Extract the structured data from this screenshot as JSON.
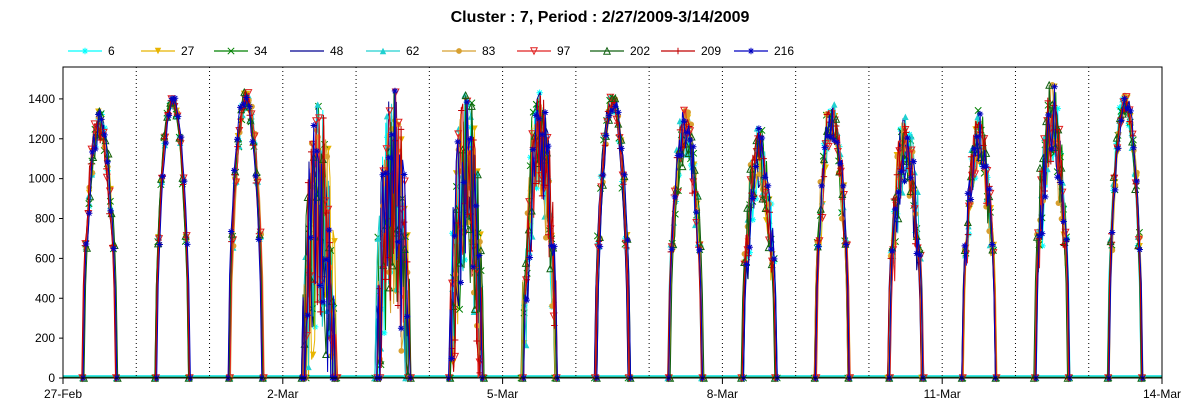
{
  "chart_data": {
    "type": "line",
    "title": "Cluster : 7, Period : 2/27/2009-3/14/2009",
    "xlabel": "",
    "ylabel": "",
    "ylim": [
      0,
      1560
    ],
    "yticks": [
      0,
      200,
      400,
      600,
      800,
      1000,
      1200,
      1400
    ],
    "xlim_days": [
      0,
      15
    ],
    "xticks": [
      {
        "day": 0,
        "label": "27-Feb"
      },
      {
        "day": 3,
        "label": "2-Mar"
      },
      {
        "day": 6,
        "label": "5-Mar"
      },
      {
        "day": 9,
        "label": "8-Mar"
      },
      {
        "day": 12,
        "label": "11-Mar"
      },
      {
        "day": 15,
        "label": "14-Mar"
      }
    ],
    "grid": {
      "vertical_dotted_daily": true,
      "horizontal": false
    },
    "legend_position": "top",
    "daily_peaks": [
      {
        "day": 0,
        "peak": 1360,
        "spread": 160,
        "profile": "cloudy"
      },
      {
        "day": 1,
        "peak": 1390,
        "spread": 60,
        "profile": "clear"
      },
      {
        "day": 2,
        "peak": 1400,
        "spread": 110,
        "profile": "clear"
      },
      {
        "day": 3,
        "peak": 1380,
        "spread": 700,
        "profile": "variable"
      },
      {
        "day": 4,
        "peak": 1460,
        "spread": 700,
        "profile": "variable"
      },
      {
        "day": 5,
        "peak": 1460,
        "spread": 600,
        "profile": "variable"
      },
      {
        "day": 6,
        "peak": 1440,
        "spread": 350,
        "profile": "variable"
      },
      {
        "day": 7,
        "peak": 1380,
        "spread": 90,
        "profile": "clear"
      },
      {
        "day": 8,
        "peak": 1370,
        "spread": 250,
        "profile": "cloudy"
      },
      {
        "day": 9,
        "peak": 1260,
        "spread": 300,
        "profile": "cloudy"
      },
      {
        "day": 10,
        "peak": 1400,
        "spread": 200,
        "profile": "cloudy"
      },
      {
        "day": 11,
        "peak": 1330,
        "spread": 350,
        "profile": "cloudy"
      },
      {
        "day": 12,
        "peak": 1350,
        "spread": 300,
        "profile": "cloudy"
      },
      {
        "day": 13,
        "peak": 1480,
        "spread": 400,
        "profile": "cloudy"
      },
      {
        "day": 14,
        "peak": 1380,
        "spread": 120,
        "profile": "clear"
      }
    ],
    "series": [
      {
        "name": "6",
        "color": "#00ffff",
        "marker": "star"
      },
      {
        "name": "27",
        "color": "#e8b400",
        "marker": "triangle-down"
      },
      {
        "name": "34",
        "color": "#008000",
        "marker": "x"
      },
      {
        "name": "48",
        "color": "#000090",
        "marker": "none"
      },
      {
        "name": "62",
        "color": "#20d0d0",
        "marker": "triangle-up"
      },
      {
        "name": "83",
        "color": "#d8a030",
        "marker": "circle"
      },
      {
        "name": "97",
        "color": "#e02020",
        "marker": "triangle-down-open"
      },
      {
        "name": "202",
        "color": "#106010",
        "marker": "triangle-up-open"
      },
      {
        "name": "209",
        "color": "#c00000",
        "marker": "plus"
      },
      {
        "name": "216",
        "color": "#0000c0",
        "marker": "asterisk"
      }
    ]
  }
}
